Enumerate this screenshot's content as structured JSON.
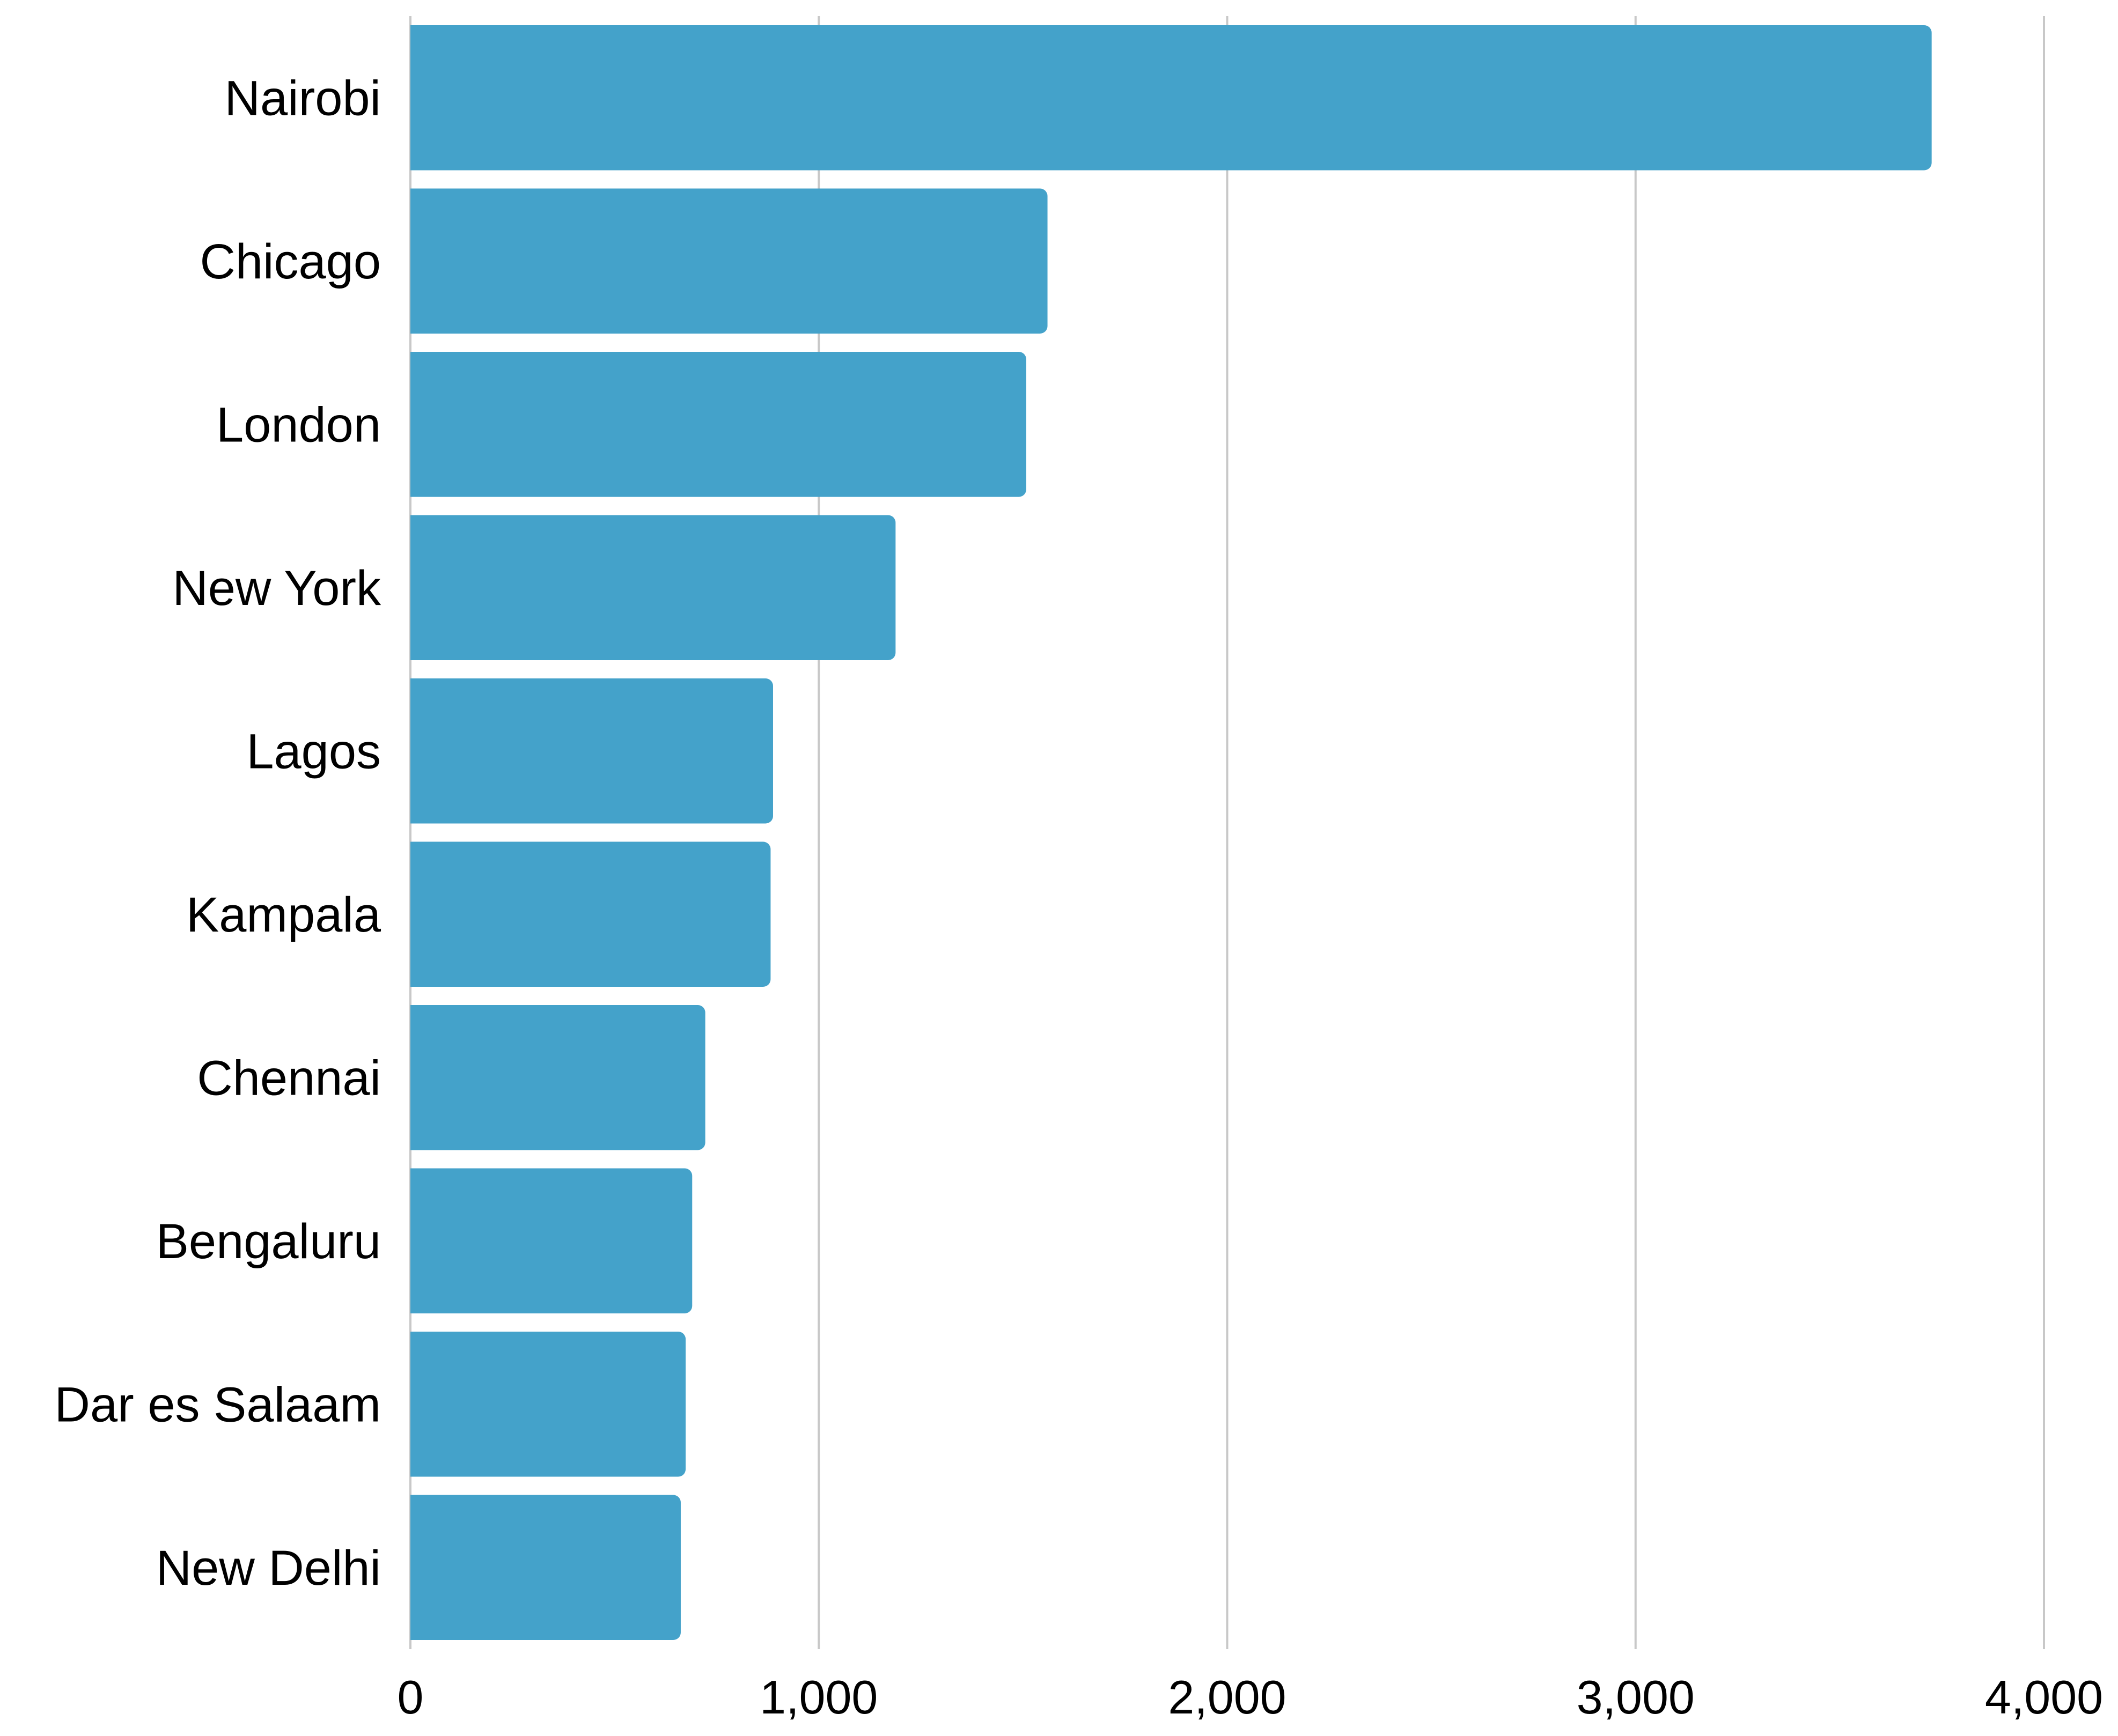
{
  "chart_data": {
    "type": "bar",
    "orientation": "horizontal",
    "categories": [
      "Nairobi",
      "Chicago",
      "London",
      "New York",
      "Lagos",
      "Kampala",
      "Chennai",
      "Bengaluru",
      "Dar es Salaam",
      "New Delhi"
    ],
    "values": [
      3725,
      1560,
      1508,
      1188,
      888,
      882,
      722,
      690,
      674,
      662
    ],
    "xlim": [
      0,
      4000
    ],
    "xticks": [
      0,
      1000,
      2000,
      3000,
      4000
    ],
    "xtick_labels": [
      "0",
      "1,000",
      "2,000",
      "3,000",
      "4,000"
    ],
    "title": "",
    "xlabel": "",
    "ylabel": "",
    "grid": "vertical",
    "legend": "none",
    "colors": {
      "bar": "#44a2ca",
      "grid": "#c8c8c8",
      "text": "#000000"
    }
  }
}
